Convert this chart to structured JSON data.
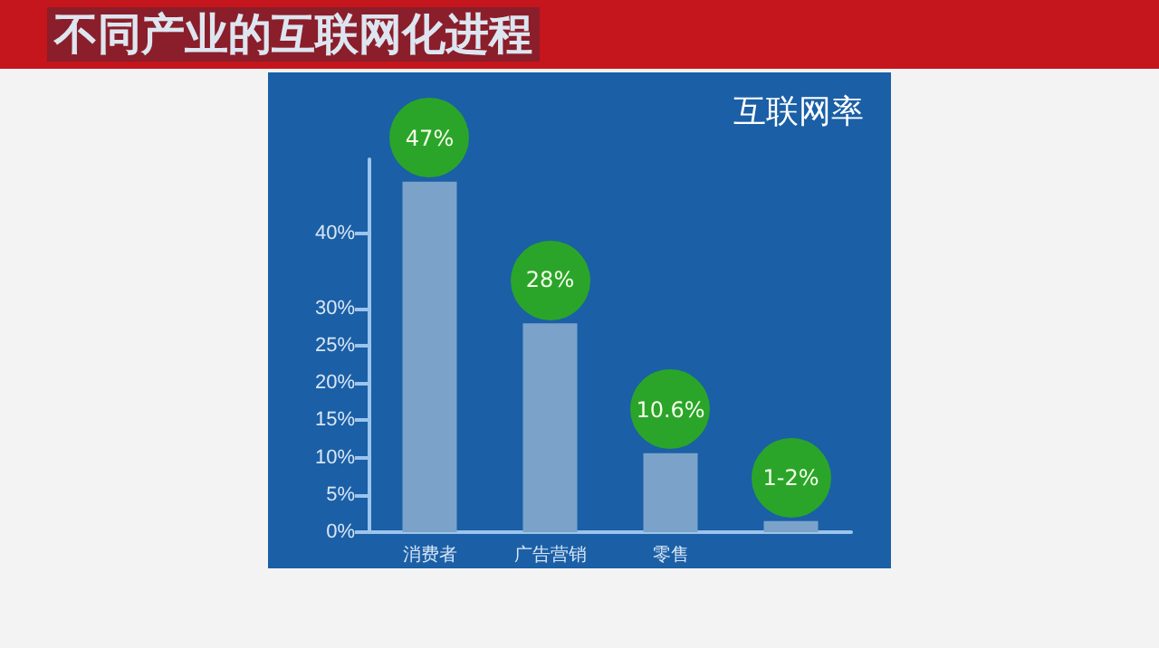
{
  "chart_data": {
    "type": "bar",
    "title": "不同产业的互联网化进程",
    "subtitle": "互联网率",
    "categories": [
      "消费者",
      "广告营销",
      "零售",
      null
    ],
    "values": [
      47,
      28,
      10.6,
      1.5
    ],
    "color": "#7ba3ca",
    "value_labels": [
      "47%",
      "28%",
      "10.6%",
      "1-2%"
    ],
    "ylim": [
      0,
      50
    ],
    "yticks": [
      {
        "value": 0,
        "label": "0%"
      },
      {
        "value": 5,
        "label": "5%"
      },
      {
        "value": 10,
        "label": "10%"
      },
      {
        "value": 15,
        "label": "15%"
      },
      {
        "value": 20,
        "label": "20%"
      },
      {
        "value": 25,
        "label": "25%"
      },
      {
        "value": 30,
        "label": "30%"
      },
      {
        "value": 40,
        "label": "40%"
      }
    ],
    "grid": false
  }
}
